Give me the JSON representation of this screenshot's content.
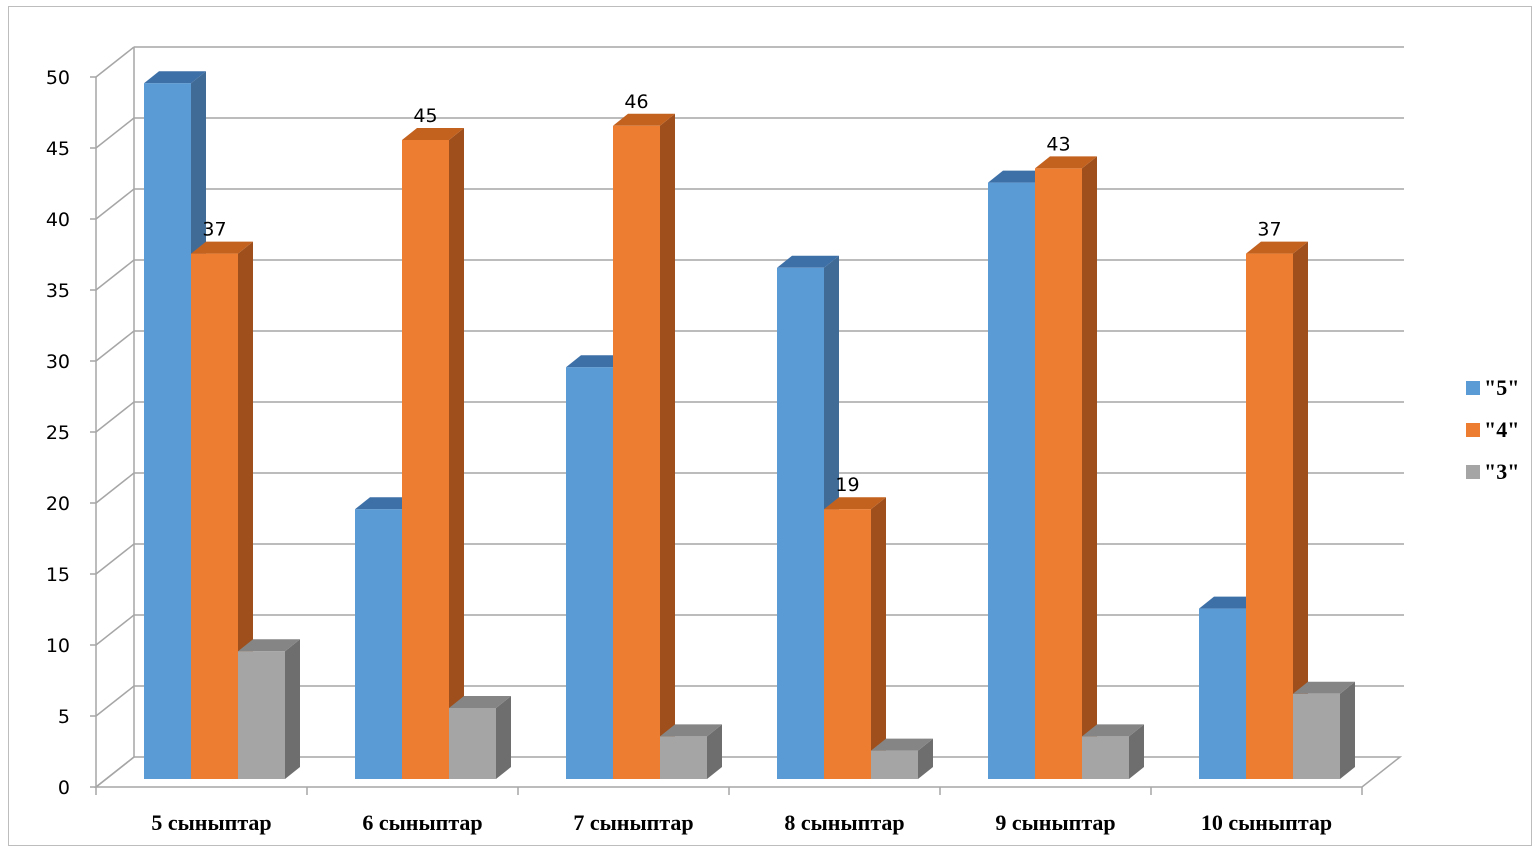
{
  "chart_data": {
    "type": "bar",
    "style": "3d-clustered-column",
    "categories": [
      "5 сыныптар",
      "6 сыныптар",
      "7 сыныптар",
      "8 сыныптар",
      "9 сыныптар",
      "10 сыныптар"
    ],
    "series": [
      {
        "name": "\"5\"",
        "color": "#5b9bd5",
        "side_color": "#3f6b96",
        "top_color": "#3e70a8",
        "values": [
          49,
          19,
          29,
          36,
          42,
          12
        ],
        "data_labels": [
          false,
          false,
          false,
          false,
          false,
          false
        ]
      },
      {
        "name": "\"4\"",
        "color": "#ed7d31",
        "side_color": "#9e4f1b",
        "top_color": "#c3621f",
        "values": [
          37,
          45,
          46,
          19,
          43,
          37
        ],
        "data_labels": [
          true,
          true,
          true,
          true,
          true,
          true
        ]
      },
      {
        "name": "\"3\"",
        "color": "#a5a5a5",
        "side_color": "#6e6e6e",
        "top_color": "#858585",
        "values": [
          9,
          5,
          3,
          2,
          3,
          6
        ],
        "data_labels": [
          false,
          false,
          false,
          false,
          false,
          false
        ]
      }
    ],
    "ylim": [
      0,
      50
    ],
    "y_ticks": [
      "0",
      "5",
      "10",
      "15",
      "20",
      "25",
      "30",
      "35",
      "40",
      "45",
      "50"
    ],
    "title": "",
    "xlabel": "",
    "ylabel": "",
    "grid": true,
    "legend_position": "right"
  }
}
